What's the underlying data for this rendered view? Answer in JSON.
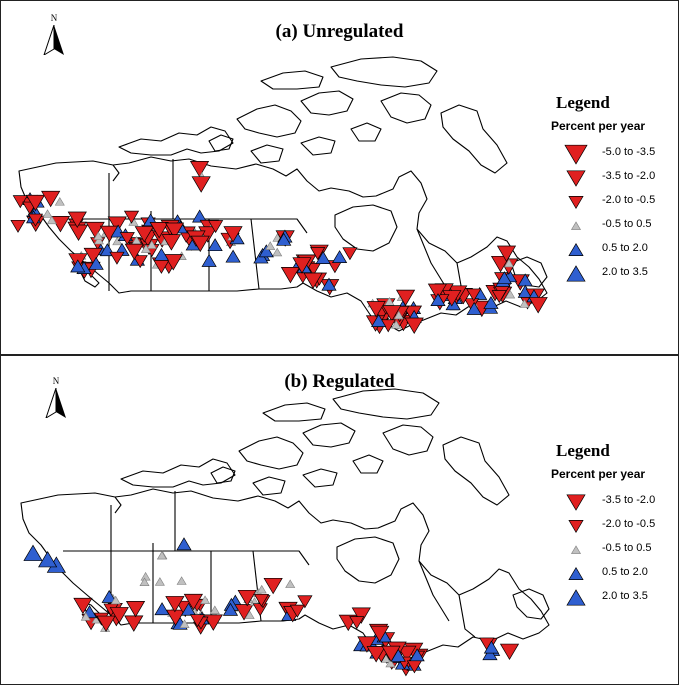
{
  "colors": {
    "decrease": "#e02020",
    "neutral": "#c0c0c0",
    "increase": "#2f5fd0",
    "outline": "#000000"
  },
  "panels": [
    {
      "title": "(a) Unregulated",
      "north_label": "N",
      "legend": {
        "title": "Legend",
        "subtitle": "Percent per year",
        "items": [
          {
            "label": "-5.0  to -3.5",
            "kind": "decrease",
            "size": "xl"
          },
          {
            "label": "-3.5 to -2.0",
            "kind": "decrease",
            "size": "l"
          },
          {
            "label": "-2.0 to -0.5",
            "kind": "decrease",
            "size": "m"
          },
          {
            "label": "-0.5 to 0.5",
            "kind": "neutral",
            "size": "s"
          },
          {
            "label": "0.5 to 2.0",
            "kind": "increase",
            "size": "m"
          },
          {
            "label": "2.0 to 3.5",
            "kind": "increase",
            "size": "l"
          }
        ]
      }
    },
    {
      "title": "(b) Regulated",
      "north_label": "N",
      "legend": {
        "title": "Legend",
        "subtitle": "Percent per year",
        "items": [
          {
            "label": "-3.5 to -2.0",
            "kind": "decrease",
            "size": "l"
          },
          {
            "label": "-2.0 to -0.5",
            "kind": "decrease",
            "size": "m"
          },
          {
            "label": "-0.5 to 0.5",
            "kind": "neutral",
            "size": "s"
          },
          {
            "label": "0.5 to 2.0",
            "kind": "increase",
            "size": "m"
          },
          {
            "label": "2.0 to 3.5",
            "kind": "increase",
            "size": "l"
          }
        ]
      }
    }
  ]
}
